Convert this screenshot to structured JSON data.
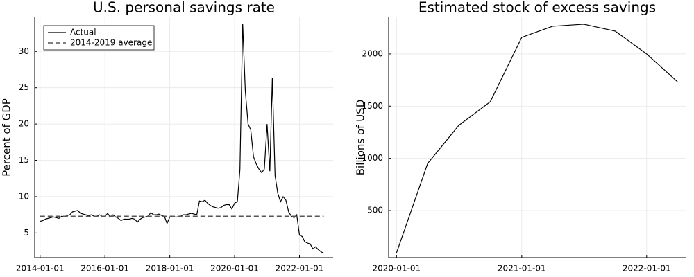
{
  "chart_data": [
    {
      "type": "line",
      "title": "U.S. personal savings rate",
      "ylabel": "Percent of GDP",
      "x": [
        "2014-01-01",
        "2014-02-01",
        "2014-03-01",
        "2014-04-01",
        "2014-05-01",
        "2014-06-01",
        "2014-07-01",
        "2014-08-01",
        "2014-09-01",
        "2014-10-01",
        "2014-11-01",
        "2014-12-01",
        "2015-01-01",
        "2015-02-01",
        "2015-03-01",
        "2015-04-01",
        "2015-05-01",
        "2015-06-01",
        "2015-07-01",
        "2015-08-01",
        "2015-09-01",
        "2015-10-01",
        "2015-11-01",
        "2015-12-01",
        "2016-01-01",
        "2016-02-01",
        "2016-03-01",
        "2016-04-01",
        "2016-05-01",
        "2016-06-01",
        "2016-07-01",
        "2016-08-01",
        "2016-09-01",
        "2016-10-01",
        "2016-11-01",
        "2016-12-01",
        "2017-01-01",
        "2017-02-01",
        "2017-03-01",
        "2017-04-01",
        "2017-05-01",
        "2017-06-01",
        "2017-07-01",
        "2017-08-01",
        "2017-09-01",
        "2017-10-01",
        "2017-11-01",
        "2017-12-01",
        "2018-01-01",
        "2018-02-01",
        "2018-03-01",
        "2018-04-01",
        "2018-05-01",
        "2018-06-01",
        "2018-07-01",
        "2018-08-01",
        "2018-09-01",
        "2018-10-01",
        "2018-11-01",
        "2018-12-01",
        "2019-01-01",
        "2019-02-01",
        "2019-03-01",
        "2019-04-01",
        "2019-05-01",
        "2019-06-01",
        "2019-07-01",
        "2019-08-01",
        "2019-09-01",
        "2019-10-01",
        "2019-11-01",
        "2019-12-01",
        "2020-01-01",
        "2020-02-01",
        "2020-03-01",
        "2020-04-01",
        "2020-05-01",
        "2020-06-01",
        "2020-07-01",
        "2020-08-01",
        "2020-09-01",
        "2020-10-01",
        "2020-11-01",
        "2020-12-01",
        "2021-01-01",
        "2021-02-01",
        "2021-03-01",
        "2021-04-01",
        "2021-05-01",
        "2021-06-01",
        "2021-07-01",
        "2021-08-01",
        "2021-09-01",
        "2021-10-01",
        "2021-11-01",
        "2021-12-01",
        "2022-01-01",
        "2022-02-01",
        "2022-03-01",
        "2022-04-01",
        "2022-05-01",
        "2022-06-01",
        "2022-07-01",
        "2022-08-01",
        "2022-09-01",
        "2022-10-01"
      ],
      "series": [
        {
          "name": "Actual",
          "color": "#000000",
          "dash": false,
          "values": [
            6.6,
            6.7,
            6.9,
            7.0,
            7.1,
            7.2,
            7.1,
            7.0,
            7.3,
            7.2,
            7.4,
            7.5,
            7.9,
            8.0,
            8.1,
            7.7,
            7.6,
            7.5,
            7.4,
            7.5,
            7.3,
            7.3,
            7.5,
            7.3,
            7.3,
            7.7,
            7.2,
            7.5,
            7.2,
            7.0,
            6.7,
            6.9,
            6.9,
            6.9,
            7.0,
            6.9,
            6.5,
            6.9,
            7.1,
            7.2,
            7.3,
            7.8,
            7.5,
            7.5,
            7.6,
            7.4,
            7.3,
            6.3,
            7.2,
            7.3,
            7.2,
            7.2,
            7.3,
            7.5,
            7.5,
            7.6,
            7.7,
            7.6,
            7.5,
            9.4,
            9.3,
            9.5,
            9.1,
            8.8,
            8.6,
            8.5,
            8.4,
            8.5,
            8.8,
            8.9,
            8.9,
            8.3,
            9.1,
            9.3,
            13.7,
            33.8,
            24.5,
            20.0,
            19.2,
            15.5,
            14.5,
            13.8,
            13.3,
            13.8,
            20.0,
            13.5,
            26.3,
            12.9,
            10.5,
            9.3,
            10.0,
            9.5,
            7.9,
            7.3,
            7.1,
            7.5,
            4.7,
            4.5,
            3.8,
            3.6,
            3.5,
            2.8,
            3.1,
            2.7,
            2.4,
            2.2
          ]
        },
        {
          "name": "2014-2019 average",
          "color": "#555555",
          "dash": true,
          "x": [
            "2014-01-01",
            "2022-10-01"
          ],
          "values": [
            7.3,
            7.3
          ]
        }
      ],
      "xlim": [
        "2013-11-01",
        "2023-01-15"
      ],
      "ylim": [
        1.6,
        34.7
      ],
      "xticks": [
        "2014-01-01",
        "2016-01-01",
        "2018-01-01",
        "2020-01-01",
        "2022-01-01"
      ],
      "yticks": [
        5,
        10,
        15,
        20,
        25,
        30
      ],
      "grid": true,
      "legend": "top-left"
    },
    {
      "type": "line",
      "title": "Estimated stock of excess savings",
      "ylabel": "Billions of USD",
      "x": [
        "2020-01-01",
        "2020-04-01",
        "2020-07-01",
        "2020-10-01",
        "2021-01-01",
        "2021-04-01",
        "2021-07-01",
        "2021-10-01",
        "2022-01-01",
        "2022-04-01"
      ],
      "series": [
        {
          "color": "#000000",
          "dash": false,
          "values": [
            95,
            951,
            1316,
            1542,
            2159,
            2265,
            2285,
            2219,
            2000,
            1734
          ]
        }
      ],
      "xlim": [
        "2019-12-09",
        "2022-04-25"
      ],
      "ylim": [
        49,
        2351
      ],
      "xticks": [
        "2020-01-01",
        "2021-01-01",
        "2022-01-01"
      ],
      "yticks": [
        500,
        1000,
        1500,
        2000
      ],
      "grid": true
    }
  ]
}
